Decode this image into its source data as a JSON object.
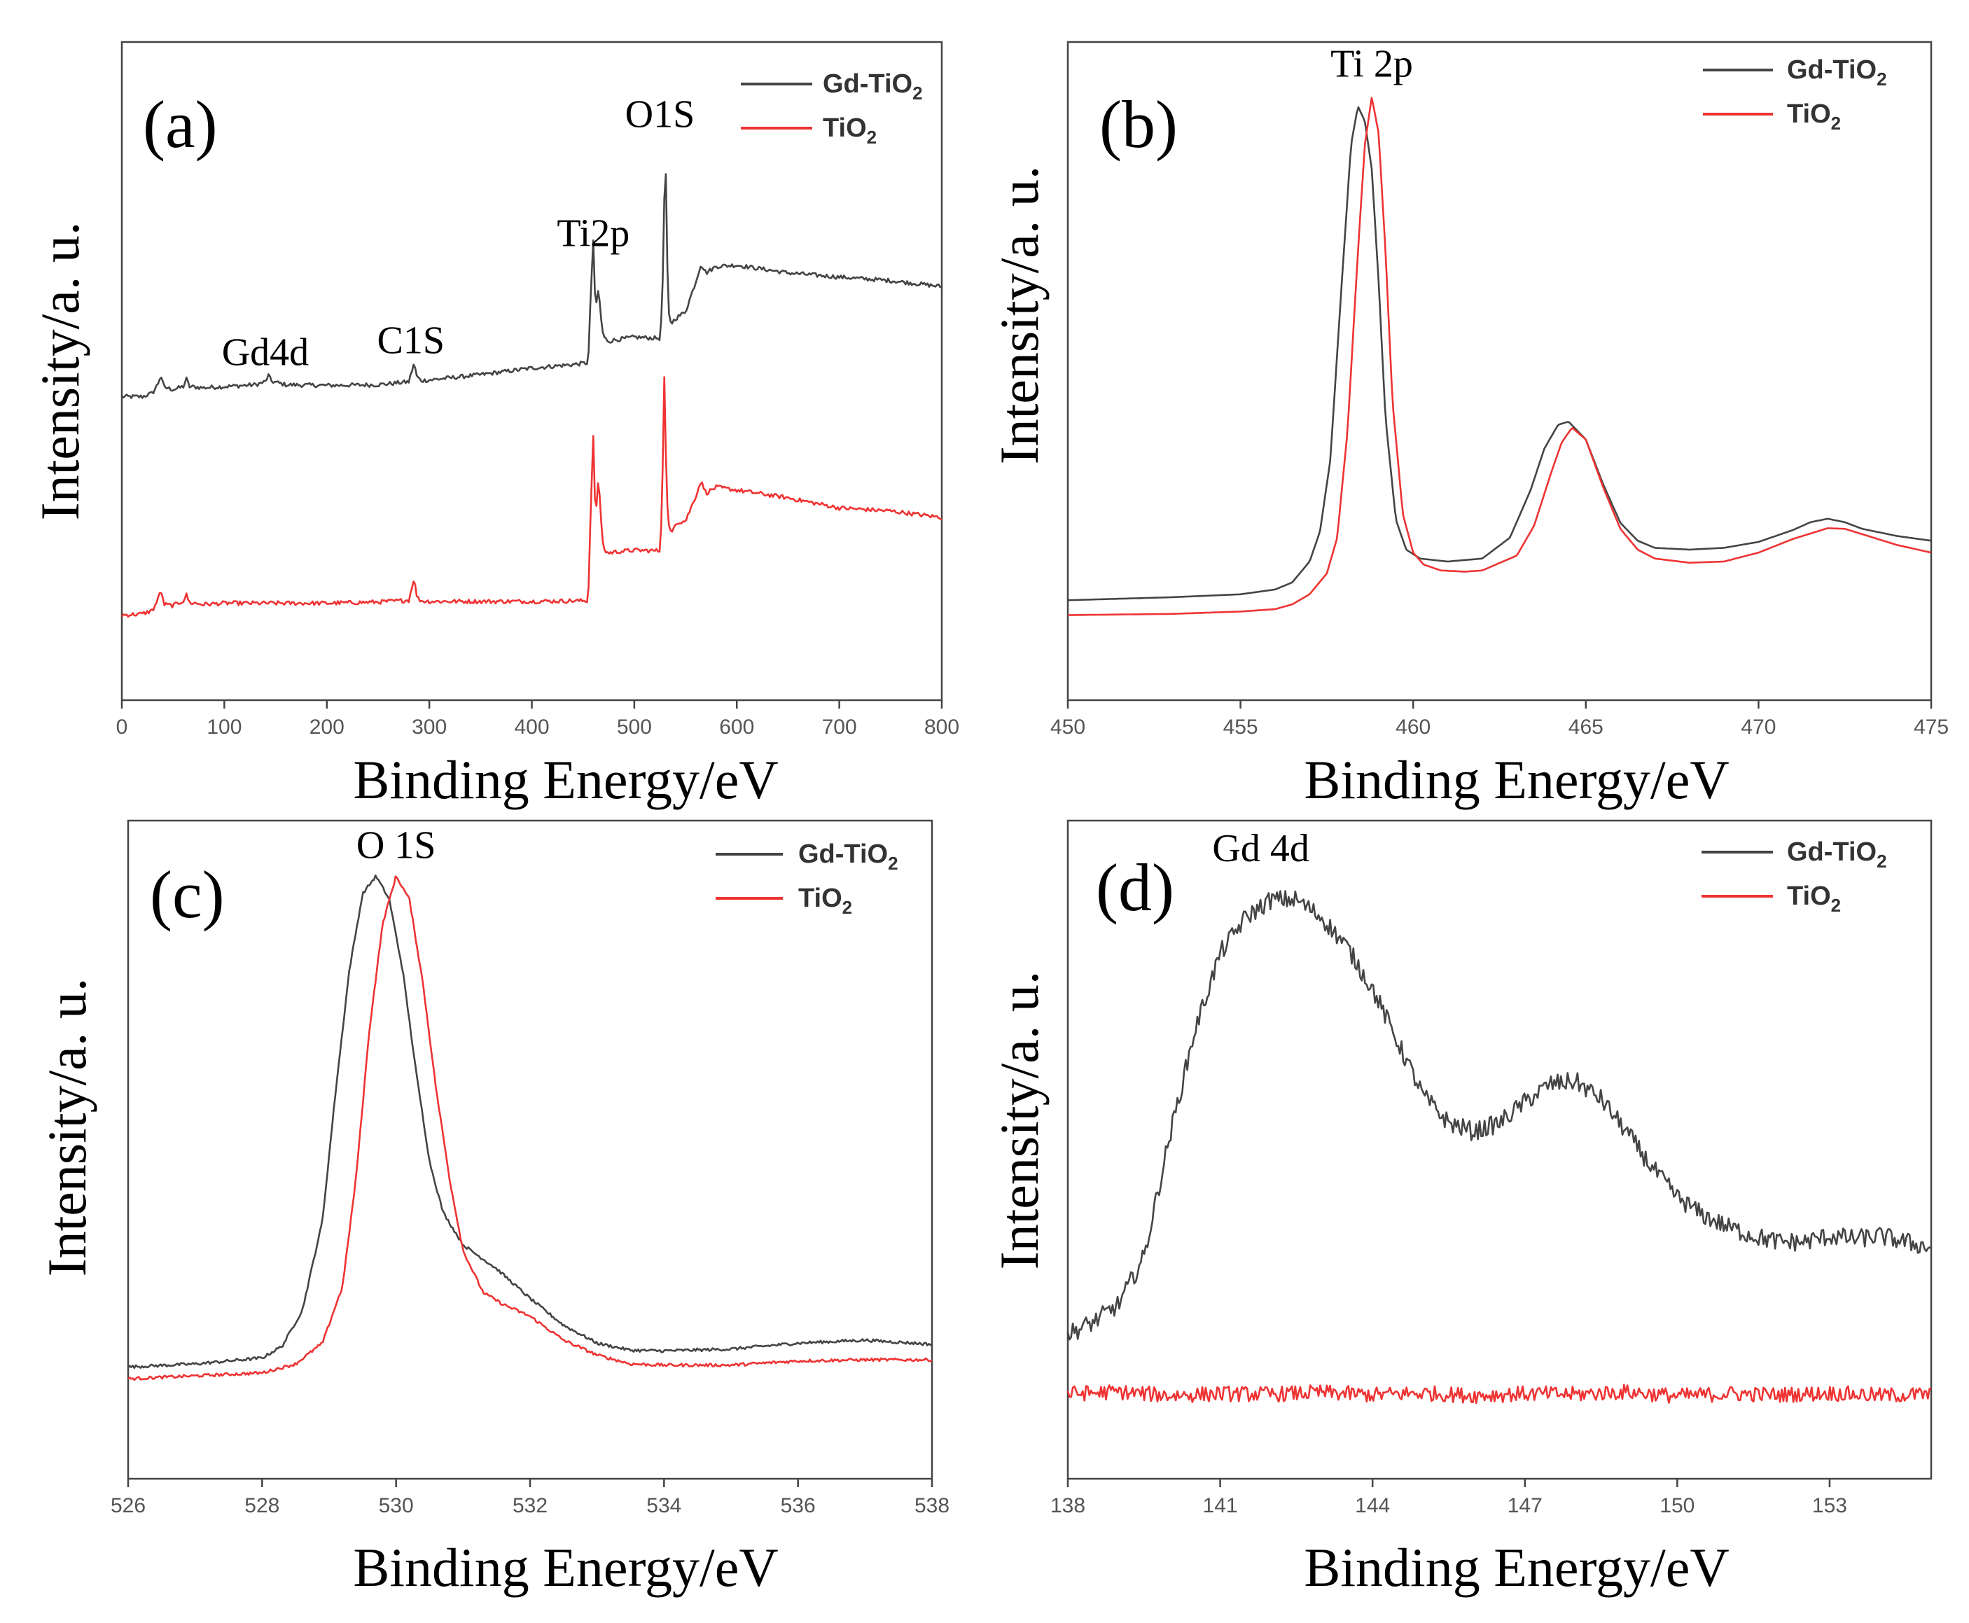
{
  "colors": {
    "gd_tio2": "#444444",
    "tio2": "#ee3333"
  },
  "chart_data": [
    {
      "type": "line",
      "panel_label": "(a)",
      "xlabel": "Binding Energy/eV",
      "ylabel": "Intensity/a. u.",
      "xlim": [
        0,
        800
      ],
      "ylim": [
        0,
        100
      ],
      "xticks": [
        0,
        100,
        200,
        300,
        400,
        500,
        600,
        700,
        800
      ],
      "legend": {
        "placement": "top-right",
        "entries": [
          {
            "series": "Gd-TiO2",
            "base": "Gd-TiO",
            "sub": "2"
          },
          {
            "series": "TiO2",
            "base": "TiO",
            "sub": "2"
          }
        ]
      },
      "annotations": [
        {
          "text": "Gd4d",
          "x": 140,
          "y": 51
        },
        {
          "text": "C1S",
          "x": 282,
          "y": 53
        },
        {
          "text": "Ti2p",
          "x": 460,
          "y": 71
        },
        {
          "text": "O1S",
          "x": 525,
          "y": 91
        }
      ],
      "series": [
        {
          "name": "Gd-TiO2",
          "color": "#444444",
          "noise": 0.35,
          "x": [
            0,
            20,
            30,
            35,
            38,
            41,
            50,
            60,
            63,
            66,
            80,
            100,
            130,
            140,
            143,
            146,
            160,
            200,
            250,
            280,
            285,
            288,
            292,
            300,
            350,
            400,
            440,
            455,
            458,
            460,
            462,
            465,
            468,
            470,
            475,
            480,
            500,
            525,
            527,
            529,
            530,
            531,
            533,
            536,
            540,
            550,
            560,
            565,
            570,
            580,
            600,
            650,
            700,
            750,
            800
          ],
          "y": [
            45.7,
            45.7,
            46.3,
            47.8,
            49.3,
            47.3,
            46.9,
            47.4,
            48.7,
            47.4,
            47.2,
            47.4,
            47.7,
            48.2,
            49.3,
            48.3,
            47.7,
            47.6,
            47.7,
            48.2,
            51.3,
            49.0,
            48.4,
            48.5,
            49.4,
            50.5,
            51.1,
            51.4,
            65.0,
            72.0,
            60.0,
            64.0,
            58.0,
            55.7,
            55.0,
            55.2,
            55.7,
            55.5,
            60.0,
            75.0,
            92.0,
            80.0,
            60.0,
            58.0,
            58.8,
            60.0,
            65.0,
            68.0,
            66.5,
            67.6,
            67.8,
            66.5,
            65.8,
            65.2,
            64.2
          ]
        },
        {
          "name": "TiO2",
          "color": "#ee3333",
          "noise": 0.35,
          "x": [
            0,
            20,
            30,
            35,
            38,
            41,
            50,
            60,
            63,
            66,
            80,
            100,
            200,
            250,
            280,
            285,
            288,
            292,
            300,
            350,
            400,
            440,
            455,
            458,
            460,
            462,
            465,
            468,
            470,
            475,
            480,
            500,
            525,
            527,
            529,
            530,
            531,
            533,
            536,
            540,
            550,
            560,
            565,
            570,
            580,
            600,
            650,
            700,
            750,
            800
          ],
          "y": [
            9.0,
            9.2,
            9.8,
            11.5,
            13.3,
            10.8,
            10.6,
            11.4,
            12.4,
            11.1,
            10.8,
            11.0,
            11.0,
            11.2,
            11.5,
            15.2,
            12.0,
            11.4,
            11.3,
            11.3,
            11.3,
            11.4,
            11.4,
            30.0,
            39.0,
            25.0,
            32.0,
            24.0,
            20.0,
            19.4,
            19.6,
            19.9,
            19.8,
            27.0,
            48.0,
            51.5,
            32.0,
            24.5,
            22.5,
            24.5,
            24.8,
            29.0,
            31.5,
            29.5,
            30.5,
            30.0,
            28.7,
            27.0,
            26.5,
            25.4
          ]
        }
      ]
    },
    {
      "type": "line",
      "panel_label": "(b)",
      "xlabel": "Binding Energy/eV",
      "ylabel": "Intensity/a. u.",
      "xlim": [
        450,
        475
      ],
      "ylim": [
        0,
        100
      ],
      "xticks": [
        450,
        455,
        460,
        465,
        470,
        475
      ],
      "legend": {
        "placement": "top-right",
        "entries": [
          {
            "series": "Gd-TiO2",
            "base": "Gd-TiO",
            "sub": "2"
          },
          {
            "series": "TiO2",
            "base": "TiO",
            "sub": "2"
          }
        ]
      },
      "annotations": [
        {
          "text": "Ti  2p",
          "x": 458.8,
          "y": 99.5
        }
      ],
      "series": [
        {
          "name": "Gd-TiO2",
          "color": "#444444",
          "noise": 0,
          "x": [
            450,
            453,
            455,
            456,
            456.5,
            457,
            457.3,
            457.6,
            457.9,
            458.2,
            458.4,
            458.6,
            458.8,
            459.0,
            459.2,
            459.5,
            459.8,
            460.2,
            461,
            462,
            462.8,
            463.4,
            463.8,
            464.2,
            464.5,
            465.0,
            465.5,
            466.0,
            466.5,
            467,
            468,
            469,
            470,
            471,
            471.5,
            472,
            472.5,
            473,
            474,
            475
          ],
          "y": [
            11.5,
            12.0,
            12.5,
            13.3,
            14.5,
            18.0,
            23.0,
            35.0,
            62.0,
            88.0,
            94.5,
            92.0,
            84.0,
            65.0,
            42.0,
            25.0,
            20.0,
            18.5,
            18.0,
            18.5,
            22.0,
            30.0,
            37.0,
            41.0,
            41.5,
            38.5,
            31.0,
            24.5,
            21.5,
            20.3,
            20.0,
            20.3,
            21.3,
            23.3,
            24.6,
            25.2,
            24.6,
            23.5,
            22.3,
            21.5
          ]
        },
        {
          "name": "TiO2",
          "color": "#ee3333",
          "noise": 0,
          "x": [
            450,
            453,
            455,
            456,
            456.5,
            457,
            457.5,
            457.8,
            458.1,
            458.4,
            458.6,
            458.8,
            459.0,
            459.2,
            459.4,
            459.7,
            460.0,
            460.3,
            460.8,
            461.5,
            462,
            463,
            463.5,
            464,
            464.3,
            464.6,
            465,
            465.5,
            466,
            466.5,
            467,
            468,
            469,
            470,
            471,
            472,
            472.5,
            473,
            474,
            475
          ],
          "y": [
            9.0,
            9.2,
            9.6,
            10.0,
            10.8,
            12.5,
            16.0,
            22.0,
            40.0,
            70.0,
            88.0,
            96.0,
            90.0,
            70.0,
            45.0,
            26.0,
            19.5,
            17.5,
            16.5,
            16.3,
            16.5,
            19.0,
            24.0,
            33.0,
            38.0,
            40.5,
            38.5,
            30.5,
            23.5,
            20.0,
            18.5,
            17.8,
            18.0,
            19.5,
            21.8,
            23.6,
            23.5,
            22.6,
            20.8,
            19.5
          ]
        }
      ]
    },
    {
      "type": "line",
      "panel_label": "(c)",
      "xlabel": "Binding Energy/eV",
      "ylabel": "Intensity/a. u.",
      "xlim": [
        526,
        538
      ],
      "ylim": [
        0,
        100
      ],
      "xticks": [
        526,
        528,
        530,
        532,
        534,
        536,
        538
      ],
      "legend": {
        "placement": "top-right",
        "entries": [
          {
            "series": "Gd-TiO2",
            "base": "Gd-TiO",
            "sub": "2"
          },
          {
            "series": "TiO2",
            "base": "TiO",
            "sub": "2"
          }
        ]
      },
      "annotations": [
        {
          "text": "O  1S",
          "x": 530,
          "y": 99
        }
      ],
      "series": [
        {
          "name": "Gd-TiO2",
          "color": "#444444",
          "noise": 0.25,
          "x": [
            526,
            527,
            528,
            528.3,
            528.6,
            528.9,
            529.1,
            529.3,
            529.5,
            529.7,
            529.9,
            530.1,
            530.3,
            530.5,
            530.7,
            531.0,
            531.5,
            532,
            532.5,
            533,
            533.5,
            534,
            535,
            536,
            537,
            538
          ],
          "y": [
            13.5,
            14.0,
            15.0,
            17.0,
            23.0,
            38.0,
            60.0,
            80.0,
            93.0,
            96.0,
            92.0,
            80.0,
            63.0,
            48.0,
            39.5,
            34.0,
            30.0,
            25.0,
            20.5,
            17.5,
            16.3,
            16.2,
            16.5,
            17.5,
            18.0,
            17.3
          ]
        },
        {
          "name": "TiO2",
          "color": "#ee3333",
          "noise": 0.25,
          "x": [
            526,
            527,
            528,
            528.5,
            528.9,
            529.2,
            529.4,
            529.6,
            529.8,
            530.0,
            530.2,
            530.4,
            530.6,
            530.8,
            531.0,
            531.3,
            531.6,
            532,
            532.5,
            533,
            533.5,
            534,
            535,
            536,
            537,
            538
          ],
          "y": [
            11.5,
            12.0,
            12.5,
            14.0,
            17.5,
            27.0,
            45.0,
            70.0,
            88.0,
            96.0,
            92.0,
            78.0,
            60.0,
            45.0,
            33.0,
            26.0,
            24.0,
            22.0,
            18.0,
            15.5,
            14.0,
            13.8,
            13.8,
            14.5,
            14.7,
            14.7
          ]
        }
      ]
    },
    {
      "type": "line",
      "panel_label": "(d)",
      "xlabel": "Binding Energy/eV",
      "ylabel": "Intensity/a. u.",
      "xlim": [
        138,
        155
      ],
      "ylim": [
        0,
        100
      ],
      "xticks": [
        138,
        141,
        144,
        147,
        150,
        153
      ],
      "legend": {
        "placement": "top-right",
        "entries": [
          {
            "series": "Gd-TiO2",
            "base": "Gd-TiO",
            "sub": "2"
          },
          {
            "series": "TiO2",
            "base": "TiO",
            "sub": "2"
          }
        ]
      },
      "annotations": [
        {
          "text": "Gd  4d",
          "x": 141.8,
          "y": 98.5
        }
      ],
      "series": [
        {
          "name": "Gd-TiO2",
          "color": "#444444",
          "noise": 1.6,
          "x": [
            138,
            138.5,
            139,
            139.5,
            140,
            140.5,
            141,
            141.5,
            142,
            142.5,
            143,
            143.5,
            144,
            144.5,
            145,
            145.5,
            146,
            146.5,
            147,
            147.5,
            148,
            148.5,
            149,
            149.5,
            150,
            150.5,
            151,
            151.5,
            152,
            152.5,
            153,
            153.5,
            154,
            154.5,
            155
          ],
          "y": [
            19.0,
            21.0,
            24.0,
            32.0,
            52.0,
            70.0,
            83.0,
            89.0,
            92.0,
            92.0,
            89.0,
            84.0,
            77.0,
            68.0,
            59.0,
            54.5,
            53.0,
            54.5,
            58.0,
            61.0,
            61.5,
            58.5,
            53.0,
            47.0,
            42.0,
            39.0,
            37.0,
            35.5,
            34.5,
            34.5,
            35.5,
            35.0,
            35.5,
            34.5,
            33.5
          ]
        },
        {
          "name": "TiO2",
          "color": "#ee3333",
          "noise": 1.3,
          "x": [
            138,
            139,
            140,
            141,
            142,
            143,
            144,
            145,
            146,
            147,
            148,
            149,
            150,
            151,
            152,
            153,
            154,
            155
          ],
          "y": [
            9.0,
            9.3,
            8.7,
            9.0,
            8.9,
            9.2,
            8.8,
            9.1,
            8.7,
            9.0,
            8.9,
            9.3,
            8.6,
            9.0,
            8.8,
            9.1,
            8.7,
            8.9
          ]
        }
      ]
    }
  ]
}
